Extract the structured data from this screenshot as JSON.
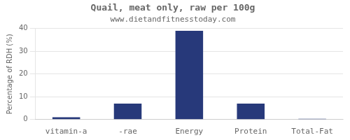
{
  "chart_data": {
    "type": "bar",
    "title": "Quail, meat only, raw per 100g",
    "subtitle": "www.dietandfitnesstoday.com",
    "categories": [
      "vitamin-a",
      "-rae",
      "Energy",
      "Protein",
      "Total-Fat"
    ],
    "values": [
      1,
      7,
      39,
      7,
      0.3
    ],
    "color": "#27397a",
    "ylabel": "Percentage of RDH (%)",
    "ylim": [
      0,
      40
    ],
    "yticks": [
      0,
      10,
      20,
      30,
      40
    ],
    "grid": true
  }
}
